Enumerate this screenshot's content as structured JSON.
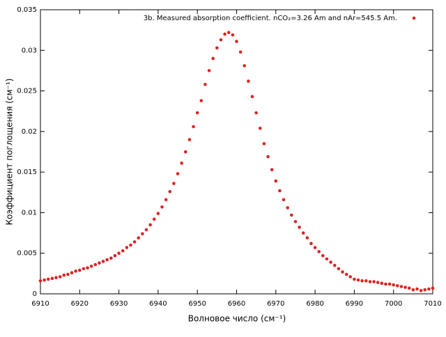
{
  "chart_data": {
    "type": "scatter",
    "xlabel": "Волновое число (см⁻¹)",
    "ylabel": "Коэффициент поглощения (см⁻¹)",
    "xlim": [
      6910,
      7010
    ],
    "xticks": [
      6910,
      6920,
      6930,
      6940,
      6950,
      6960,
      6970,
      6980,
      6990,
      7000,
      7010
    ],
    "ylim": [
      0,
      0.035
    ],
    "yticks": [
      0,
      0.005,
      0.01,
      0.015,
      0.02,
      0.025,
      0.03,
      0.035
    ],
    "legend_position": "top-right",
    "x": [
      6910,
      6911,
      6912,
      6913,
      6914,
      6915,
      6916,
      6917,
      6918,
      6919,
      6920,
      6921,
      6922,
      6923,
      6924,
      6925,
      6926,
      6927,
      6928,
      6929,
      6930,
      6931,
      6932,
      6933,
      6934,
      6935,
      6936,
      6937,
      6938,
      6939,
      6940,
      6941,
      6942,
      6943,
      6944,
      6945,
      6946,
      6947,
      6948,
      6949,
      6950,
      6951,
      6952,
      6953,
      6954,
      6955,
      6956,
      6957,
      6958,
      6959,
      6960,
      6961,
      6962,
      6963,
      6964,
      6965,
      6966,
      6967,
      6968,
      6969,
      6970,
      6971,
      6972,
      6973,
      6974,
      6975,
      6976,
      6977,
      6978,
      6979,
      6980,
      6981,
      6982,
      6983,
      6984,
      6985,
      6986,
      6987,
      6988,
      6989,
      6990,
      6991,
      6992,
      6993,
      6994,
      6995,
      6996,
      6997,
      6998,
      6999,
      7000,
      7001,
      7002,
      7003,
      7004,
      7005,
      7006,
      7007,
      7008,
      7009,
      7010
    ],
    "series": [
      {
        "name": "3b. Measured absorption coefficient. nCO₂=3.26 Am and nAr=545.5 Am.",
        "color": "#dd2222",
        "values": [
          0.0016,
          0.0017,
          0.0018,
          0.0019,
          0.002,
          0.0021,
          0.0023,
          0.0024,
          0.0026,
          0.0028,
          0.0029,
          0.0031,
          0.0032,
          0.0034,
          0.0036,
          0.0038,
          0.004,
          0.0042,
          0.0044,
          0.0047,
          0.005,
          0.0053,
          0.0057,
          0.006,
          0.0064,
          0.0069,
          0.0074,
          0.0079,
          0.0085,
          0.0092,
          0.0099,
          0.0107,
          0.0116,
          0.0126,
          0.0136,
          0.0148,
          0.0161,
          0.0175,
          0.019,
          0.0206,
          0.0223,
          0.0238,
          0.0258,
          0.0275,
          0.029,
          0.0303,
          0.0313,
          0.032,
          0.0322,
          0.0319,
          0.0311,
          0.0298,
          0.0281,
          0.0262,
          0.0243,
          0.0223,
          0.0204,
          0.0185,
          0.0169,
          0.0153,
          0.0139,
          0.0127,
          0.0116,
          0.0106,
          0.0097,
          0.0089,
          0.0082,
          0.0075,
          0.0069,
          0.0062,
          0.0057,
          0.0052,
          0.0047,
          0.0043,
          0.0039,
          0.0035,
          0.0031,
          0.0027,
          0.0024,
          0.0021,
          0.0018,
          0.0017,
          0.0016,
          0.0016,
          0.0015,
          0.0015,
          0.0014,
          0.0013,
          0.0012,
          0.0012,
          0.0011,
          0.001,
          0.0009,
          0.0008,
          0.0007,
          0.0005,
          0.0006,
          0.0004,
          0.0005,
          0.0006,
          0.0007
        ]
      }
    ]
  }
}
